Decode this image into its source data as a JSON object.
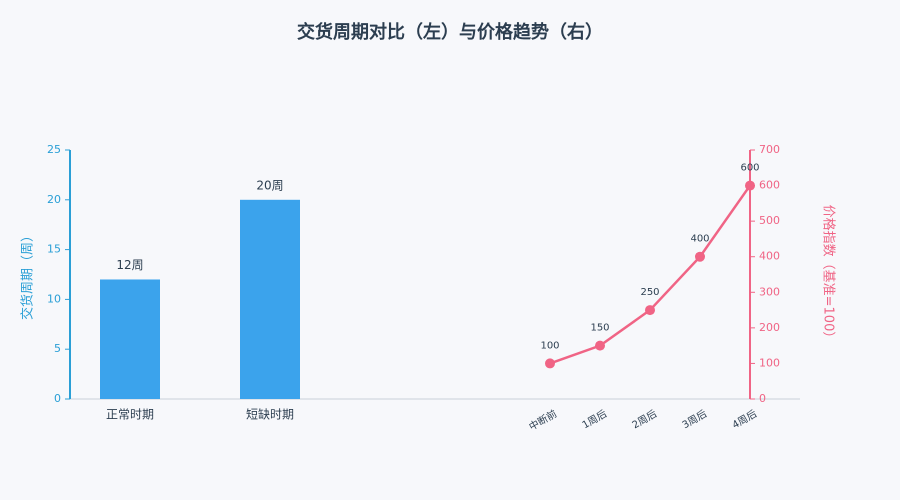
{
  "title": "交货周期对比（左）与价格趋势（右）",
  "chart_data": [
    {
      "type": "bar",
      "y_label": "交货周期（周）",
      "categories": [
        "正常时期",
        "短缺时期"
      ],
      "values": [
        12,
        20
      ],
      "value_labels": [
        "12周",
        "20周"
      ],
      "color": "#3ba3ec",
      "axis_color": "#2a9fd6",
      "ylim": [
        0,
        25
      ],
      "yticks": [
        0,
        5,
        10,
        15,
        20,
        25
      ]
    },
    {
      "type": "line",
      "y_label": "价格指数（基准=100）",
      "categories": [
        "中断前",
        "1周后",
        "2周后",
        "3周后",
        "4周后"
      ],
      "values": [
        100,
        150,
        250,
        400,
        600
      ],
      "color": "#f06485",
      "axis_color": "#f06485",
      "ylim": [
        0,
        700
      ],
      "yticks": [
        0,
        100,
        200,
        300,
        400,
        500,
        600,
        700
      ]
    }
  ]
}
